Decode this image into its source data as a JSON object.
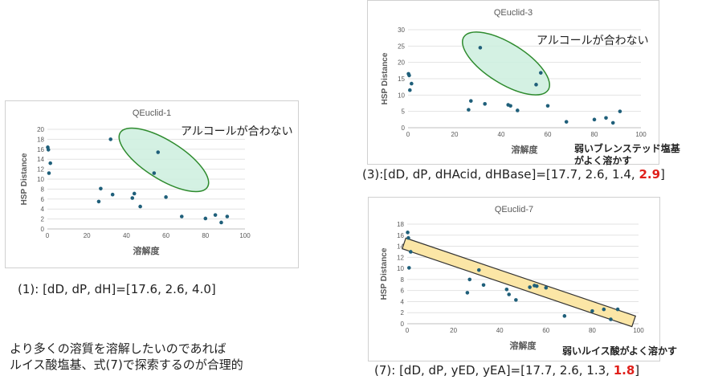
{
  "chart_data": [
    {
      "type": "scatter",
      "title": "QEuclid-1",
      "xlabel": "溶解度",
      "ylabel": "HSP Distance",
      "xlim": [
        0,
        100
      ],
      "ylim": [
        0,
        20
      ],
      "xticks": [
        0,
        20,
        40,
        60,
        80,
        100
      ],
      "yticks": [
        0,
        2,
        4,
        6,
        8,
        10,
        12,
        14,
        16,
        18,
        20
      ],
      "grid": true,
      "marker_color": "#1f5f7a",
      "points": [
        [
          0.2,
          16.4
        ],
        [
          0.5,
          15.9
        ],
        [
          0.8,
          11.2
        ],
        [
          1.5,
          13.2
        ],
        [
          26,
          5.5
        ],
        [
          27,
          8.1
        ],
        [
          32,
          18.0
        ],
        [
          33,
          6.9
        ],
        [
          43,
          6.2
        ],
        [
          44,
          7.1
        ],
        [
          47,
          4.5
        ],
        [
          54,
          11.2
        ],
        [
          56,
          15.4
        ],
        [
          60,
          6.4
        ],
        [
          68,
          2.5
        ],
        [
          80,
          2.1
        ],
        [
          85,
          2.8
        ],
        [
          88,
          1.3
        ],
        [
          91,
          2.5
        ]
      ],
      "annotation": "アルコールが合わない",
      "ellipse_color": "#2e8b2e"
    },
    {
      "type": "scatter",
      "title": "QEuclid-3",
      "xlabel": "溶解度",
      "ylabel": "HSP Distance",
      "xlim": [
        0,
        100
      ],
      "ylim": [
        0,
        30
      ],
      "xticks": [
        0,
        20,
        40,
        60,
        80,
        100
      ],
      "yticks": [
        0,
        5,
        10,
        15,
        20,
        25,
        30
      ],
      "grid": true,
      "marker_color": "#1f5f7a",
      "points": [
        [
          0.2,
          16.5
        ],
        [
          0.5,
          16.0
        ],
        [
          0.8,
          11.5
        ],
        [
          1.5,
          13.5
        ],
        [
          26,
          5.5
        ],
        [
          27,
          8.2
        ],
        [
          31,
          24.5
        ],
        [
          33,
          7.3
        ],
        [
          43,
          7.0
        ],
        [
          44,
          6.7
        ],
        [
          47,
          5.3
        ],
        [
          55,
          13.2
        ],
        [
          57,
          16.8
        ],
        [
          60,
          6.7
        ],
        [
          68,
          1.8
        ],
        [
          80,
          2.5
        ],
        [
          85,
          3.0
        ],
        [
          88,
          1.5
        ],
        [
          91,
          5.0
        ]
      ],
      "annotation": "アルコールが合わない",
      "ellipse_color": "#2e8b2e"
    },
    {
      "type": "scatter",
      "title": "QEuclid-7",
      "xlabel": "溶解度",
      "ylabel": "HSP Distance",
      "xlim": [
        0,
        100
      ],
      "ylim": [
        0,
        18
      ],
      "xticks": [
        0,
        20,
        40,
        60,
        80,
        100
      ],
      "yticks": [
        0,
        2,
        4,
        6,
        8,
        10,
        12,
        14,
        16,
        18
      ],
      "grid": true,
      "marker_color": "#1f5f7a",
      "points": [
        [
          0.2,
          16.5
        ],
        [
          0.5,
          15.5
        ],
        [
          0.8,
          10.1
        ],
        [
          1.5,
          13.0
        ],
        [
          26,
          5.6
        ],
        [
          27,
          8.0
        ],
        [
          31,
          9.7
        ],
        [
          33,
          7.0
        ],
        [
          43,
          6.2
        ],
        [
          44,
          5.3
        ],
        [
          47,
          4.3
        ],
        [
          53,
          6.6
        ],
        [
          55,
          6.9
        ],
        [
          56,
          6.8
        ],
        [
          60,
          6.5
        ],
        [
          68,
          1.4
        ],
        [
          80,
          2.3
        ],
        [
          85,
          2.6
        ],
        [
          88,
          0.8
        ],
        [
          91,
          2.6
        ]
      ],
      "band_color": "#fbe6a6"
    }
  ],
  "captions": {
    "c1": "(1): [dD, dP, dH]=[17.6, 2.6, 4.0]",
    "c3_pre": "(3):[dD, dP, dHAcid, dHBase]=[17.7, 2.6, 1.4, ",
    "c3_hl": "2.9",
    "c3_post": "]",
    "c7_pre": "(7): [dD, dP, yED, yEA]=[17.7, 2.6, 1.3, ",
    "c7_hl": "1.8",
    "c7_post": "]"
  },
  "notes": {
    "bronsted_line1": "弱いブレンステッド塩基",
    "bronsted_line2": "がよく溶かす",
    "lewis": "弱いルイス酸がよく溶かす"
  },
  "conclusion": {
    "line1": "より多くの溶質を溶解したいのであれば",
    "line2": "ルイス酸塩基、式(7)で探索するのが合理的"
  },
  "colors": {
    "highlight": "#e0201b",
    "marker": "#1f5f7a",
    "ellipse_fill": "#cdeede",
    "band_fill": "#fbe6a6"
  }
}
